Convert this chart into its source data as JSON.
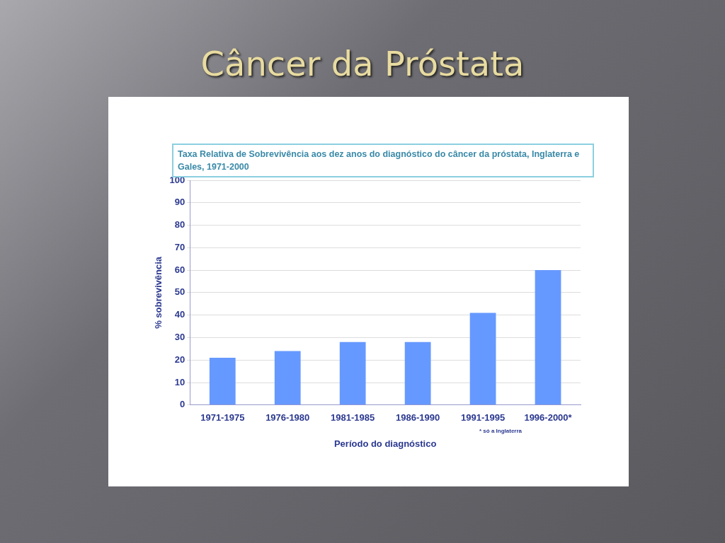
{
  "chart_data": {
    "type": "bar",
    "title": "Câncer da Próstata",
    "subtitle": "Taxa Relativa de Sobrevivência aos dez anos do diagnóstico do câncer da próstata, Inglaterra e Gales, 1971-2000",
    "categories": [
      "1971-1975",
      "1976-1980",
      "1981-1985",
      "1986-1990",
      "1991-1995",
      "1996-2000*"
    ],
    "values": [
      21,
      24,
      28,
      28,
      41,
      60
    ],
    "color": "#6699ff",
    "ylim": [
      0,
      100
    ],
    "yticks": [
      0,
      10,
      20,
      30,
      40,
      50,
      60,
      70,
      80,
      90,
      100
    ],
    "grid": "y",
    "xlabel": "Período do diagnóstico",
    "ylabel": "% sobrevivência",
    "annotations": [
      "* só a Inglaterra"
    ]
  }
}
